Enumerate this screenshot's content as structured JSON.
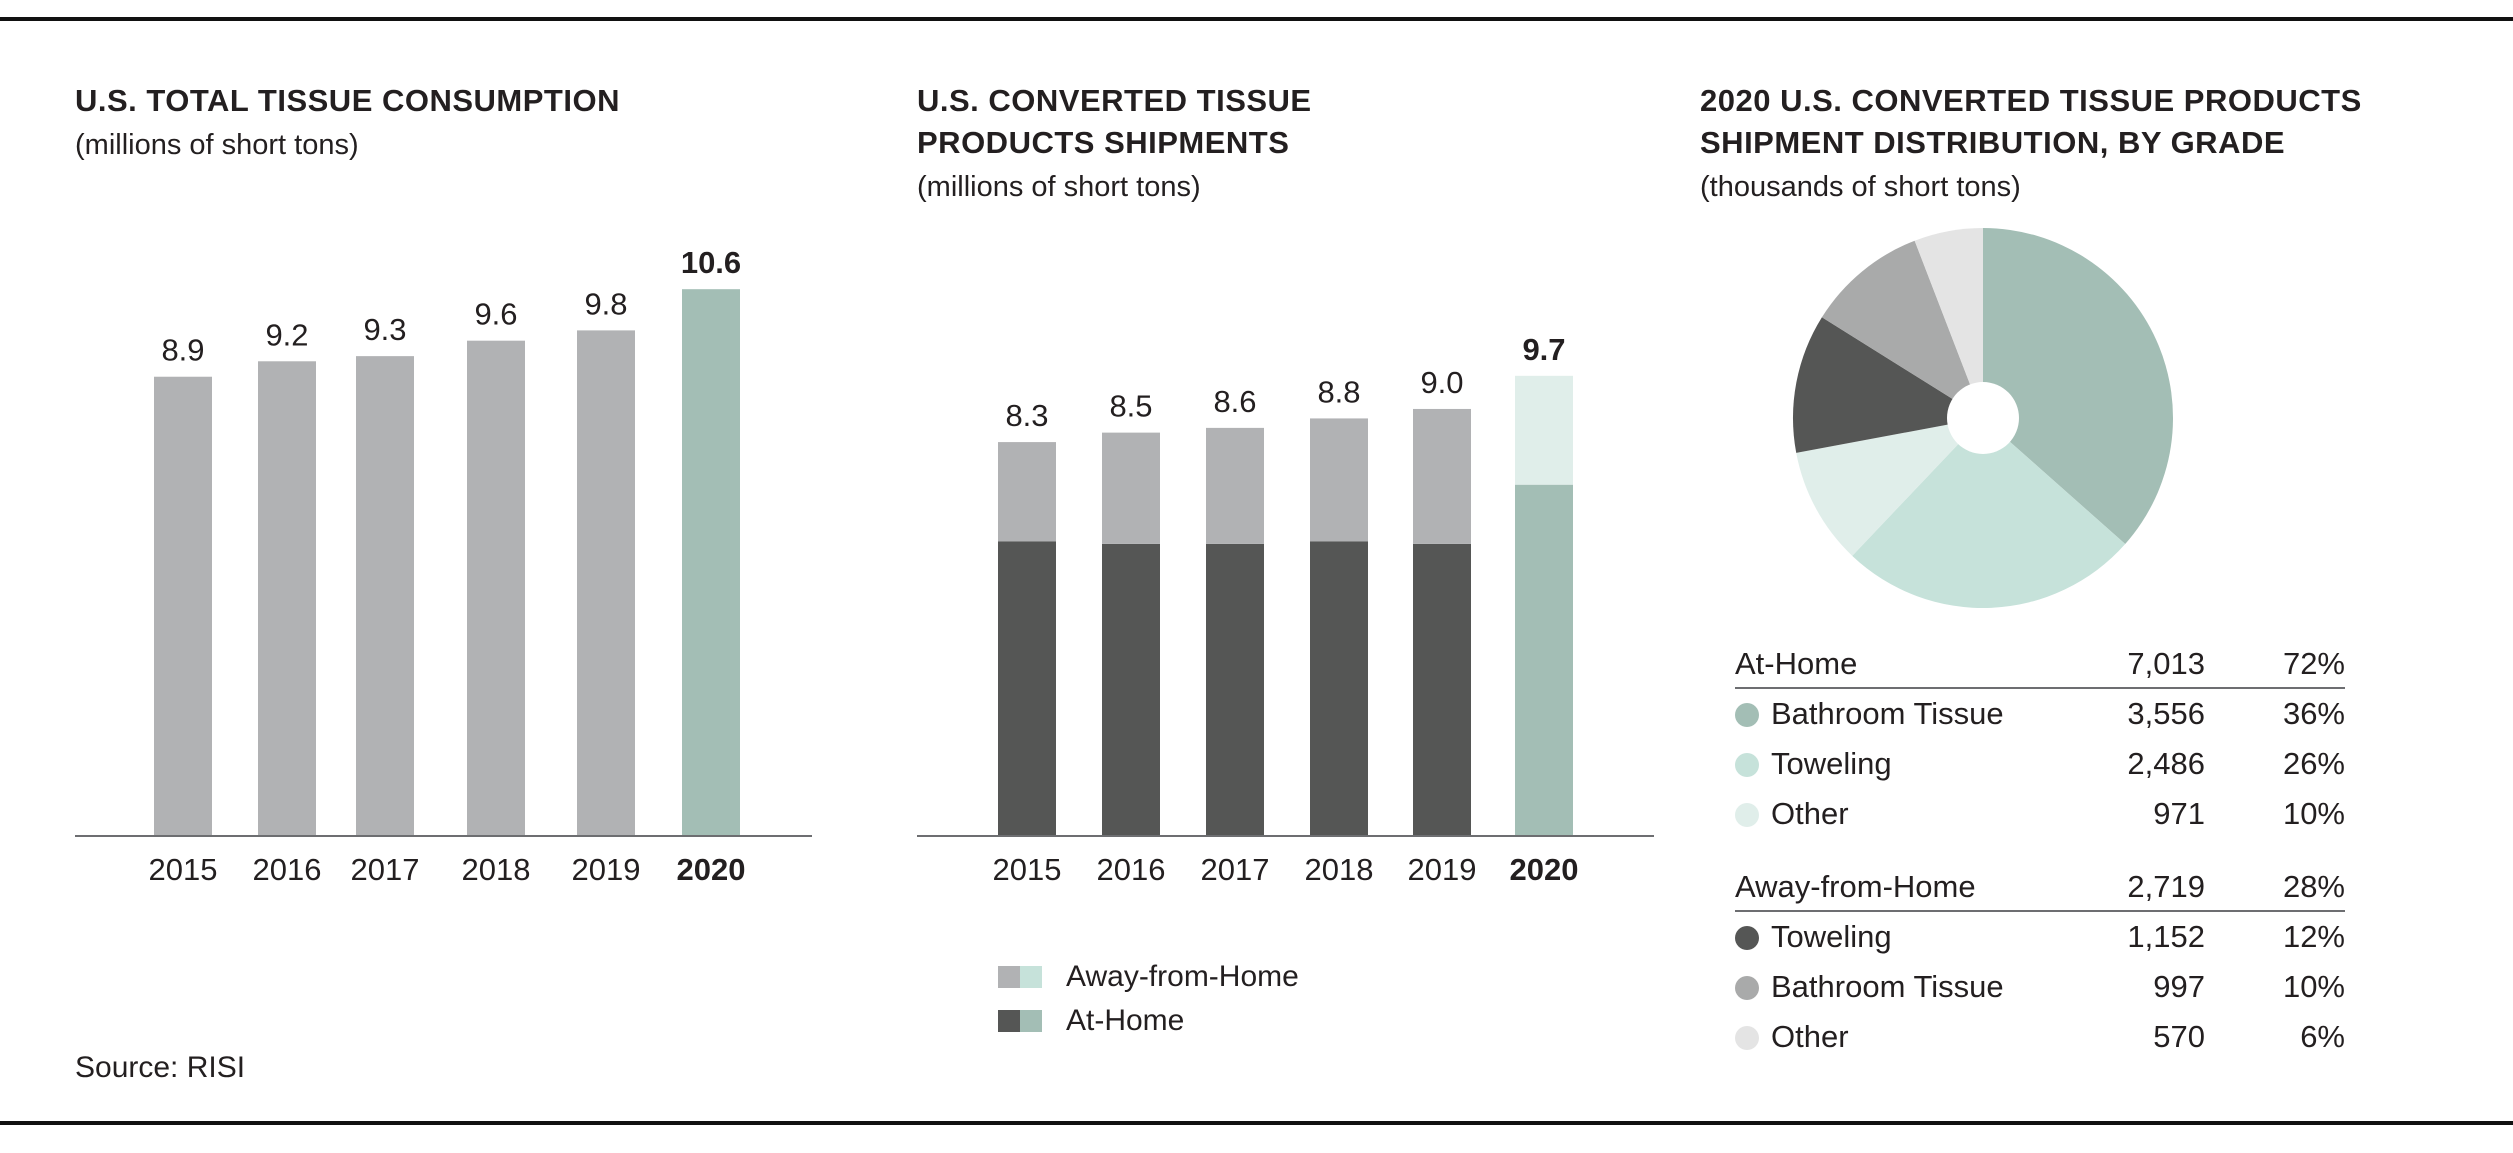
{
  "colors": {
    "gray_bar": "#b1b2b4",
    "dark_bar": "#555655",
    "accent_teal": "#a3beb5",
    "light_teal": "#c6e2da",
    "lightest_teal": "#e0eeea",
    "mid_gray": "#a9aaaa",
    "light_gray": "#e4e4e4",
    "text": "#231f20"
  },
  "panel1": {
    "title": "U.S. TOTAL TISSUE CONSUMPTION",
    "subtitle": "(millions of short tons)"
  },
  "panel2": {
    "title_line1": "U.S. CONVERTED TISSUE",
    "title_line2": "PRODUCTS SHIPMENTS",
    "subtitle": "(millions of short tons)",
    "legend": {
      "away": "Away-from-Home",
      "at_home": "At-Home"
    }
  },
  "panel3": {
    "title_line1": "2020 U.S. CONVERTED TISSUE PRODUCTS",
    "title_line2": "SHIPMENT DISTRIBUTION, BY GRADE",
    "subtitle": "(thousands of short tons)",
    "groups": [
      {
        "name": "At-Home",
        "value": "7,013",
        "pct": "72%",
        "items": [
          {
            "name": "Bathroom Tissue",
            "value": "3,556",
            "pct": "36%",
            "color": "#a3beb5"
          },
          {
            "name": "Toweling",
            "value": "2,486",
            "pct": "26%",
            "color": "#c6e2da"
          },
          {
            "name": "Other",
            "value": "971",
            "pct": "10%",
            "color": "#e0eeea"
          }
        ]
      },
      {
        "name": "Away-from-Home",
        "value": "2,719",
        "pct": "28%",
        "items": [
          {
            "name": "Toweling",
            "value": "1,152",
            "pct": "12%",
            "color": "#555655"
          },
          {
            "name": "Bathroom Tissue",
            "value": "997",
            "pct": "10%",
            "color": "#a9aaaa"
          },
          {
            "name": "Other",
            "value": "570",
            "pct": "6%",
            "color": "#e4e4e4"
          }
        ]
      }
    ]
  },
  "source": "Source: RISI",
  "chart_data": [
    {
      "type": "bar",
      "title": "U.S. TOTAL TISSUE CONSUMPTION",
      "subtitle": "(millions of short tons)",
      "categories": [
        "2015",
        "2016",
        "2017",
        "2018",
        "2019",
        "2020"
      ],
      "values": [
        8.9,
        9.2,
        9.3,
        9.6,
        9.8,
        10.6
      ],
      "value_labels": [
        "8.9",
        "9.2",
        "9.3",
        "9.6",
        "9.8",
        "10.6"
      ],
      "highlight": "2020",
      "ylim": [
        0,
        11.4
      ],
      "grid": false
    },
    {
      "type": "bar",
      "stacked": true,
      "title": "U.S. CONVERTED TISSUE PRODUCTS SHIPMENTS",
      "subtitle": "(millions of short tons)",
      "categories": [
        "2015",
        "2016",
        "2017",
        "2018",
        "2019",
        "2020"
      ],
      "series": [
        {
          "name": "At-Home",
          "values": [
            6.2,
            6.15,
            6.15,
            6.2,
            6.15,
            7.4
          ]
        },
        {
          "name": "Away-from-Home",
          "values": [
            2.1,
            2.35,
            2.45,
            2.6,
            2.85,
            2.3
          ]
        }
      ],
      "totals": [
        "8.3",
        "8.5",
        "8.6",
        "8.8",
        "9.0",
        "9.7"
      ],
      "highlight": "2020",
      "ylim": [
        0,
        12.4
      ],
      "legend": "bottom",
      "grid": false
    },
    {
      "type": "pie",
      "title": "2020 U.S. CONVERTED TISSUE PRODUCTS SHIPMENT DISTRIBUTION, BY GRADE",
      "subtitle": "(thousands of short tons)",
      "slices": [
        {
          "label": "At-Home Bathroom Tissue",
          "value": 3556,
          "color": "#a3beb5"
        },
        {
          "label": "At-Home Toweling",
          "value": 2486,
          "color": "#c6e2da"
        },
        {
          "label": "At-Home Other",
          "value": 971,
          "color": "#e0eeea"
        },
        {
          "label": "Away-from-Home Toweling",
          "value": 1152,
          "color": "#555655"
        },
        {
          "label": "Away-from-Home Bathroom Tissue",
          "value": 997,
          "color": "#a9aaaa"
        },
        {
          "label": "Away-from-Home Other",
          "value": 570,
          "color": "#e4e4e4"
        }
      ]
    }
  ]
}
